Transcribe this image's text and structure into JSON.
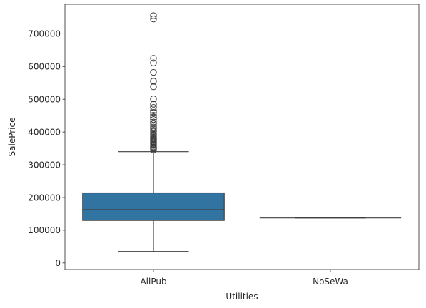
{
  "chart_data": {
    "type": "box",
    "title": "",
    "xlabel": "Utilities",
    "ylabel": "SalePrice",
    "categories": [
      "AllPub",
      "NoSeWa"
    ],
    "ylim": [
      -20000,
      790000
    ],
    "yticks": [
      0,
      100000,
      200000,
      300000,
      400000,
      500000,
      600000,
      700000
    ],
    "ytick_labels": [
      "0",
      "100000",
      "200000",
      "300000",
      "400000",
      "500000",
      "600000",
      "700000"
    ],
    "box_color": "#3274a1",
    "grid": false,
    "boxes": [
      {
        "category": "AllPub",
        "whisker_low": 34900,
        "q1": 129950,
        "median": 163000,
        "q3": 214000,
        "whisker_high": 340000,
        "outliers": [
          345000,
          348000,
          350000,
          352000,
          355000,
          359000,
          360000,
          362000,
          365000,
          367000,
          370000,
          372000,
          375000,
          378000,
          380000,
          383000,
          385000,
          390000,
          392000,
          395000,
          402000,
          405000,
          410000,
          415000,
          420000,
          425000,
          430000,
          438000,
          445000,
          451000,
          460000,
          465000,
          475000,
          485000,
          501000,
          538000,
          555000,
          556000,
          582000,
          611000,
          625000,
          745000,
          755000
        ]
      },
      {
        "category": "NoSeWa",
        "whisker_low": 137500,
        "q1": 137500,
        "median": 137500,
        "q3": 137500,
        "whisker_high": 137500,
        "outliers": []
      }
    ]
  }
}
